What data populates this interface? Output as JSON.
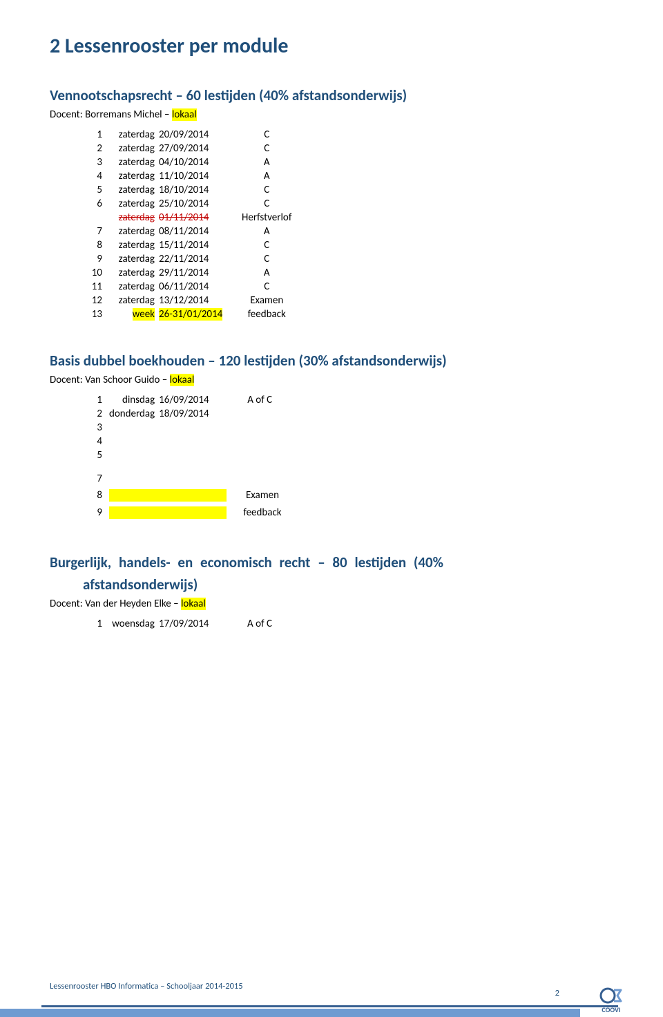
{
  "colors": {
    "heading": "#1f4e79",
    "highlight": "#ffff00",
    "strike": "#c00000",
    "barTop": "#365f91",
    "barBot": "#6f9bd1"
  },
  "sectionTitle": "2  Lessenrooster per module",
  "module1": {
    "title": "Vennootschapsrecht – 60 lestijden (40% afstandsonderwijs)",
    "docentPrefix": "Docent: Borremans Michel – ",
    "docentHighlight": "lokaal",
    "rows": [
      {
        "n": "1",
        "day": "zaterdag",
        "date": "20/09/2014",
        "v": "C"
      },
      {
        "n": "2",
        "day": "zaterdag",
        "date": "27/09/2014",
        "v": "C"
      },
      {
        "n": "3",
        "day": "zaterdag",
        "date": "04/10/2014",
        "v": "A"
      },
      {
        "n": "4",
        "day": "zaterdag",
        "date": "11/10/2014",
        "v": "A"
      },
      {
        "n": "5",
        "day": "zaterdag",
        "date": "18/10/2014",
        "v": "C"
      },
      {
        "n": "6",
        "day": "zaterdag",
        "date": "25/10/2014",
        "v": "C"
      },
      {
        "n": "",
        "day": "zaterdag",
        "date": "01/11/2014",
        "v": "Herfstverlof",
        "strike": true
      },
      {
        "n": "7",
        "day": "zaterdag",
        "date": "08/11/2014",
        "v": "A"
      },
      {
        "n": "8",
        "day": "zaterdag",
        "date": "15/11/2014",
        "v": "C"
      },
      {
        "n": "9",
        "day": "zaterdag",
        "date": "22/11/2014",
        "v": "C"
      },
      {
        "n": "10",
        "day": "zaterdag",
        "date": "29/11/2014",
        "v": "A"
      },
      {
        "n": "11",
        "day": "zaterdag",
        "date": "06/11/2014",
        "v": "C"
      },
      {
        "n": "12",
        "day": "zaterdag",
        "date": "13/12/2014",
        "v": "Examen"
      },
      {
        "n": "13",
        "day": "week",
        "date": "26-31/01/2014",
        "v": "feedback",
        "hl": true
      }
    ]
  },
  "module2": {
    "title": "Basis dubbel boekhouden – 120 lestijden (30% afstandsonderwijs)",
    "docentPrefix": "Docent: Van Schoor Guido  – ",
    "docentHighlight": "lokaal",
    "rows": [
      {
        "n": "1",
        "day": "dinsdag",
        "date": "16/09/2014",
        "v": "A of C"
      },
      {
        "n": "2",
        "day": "donderdag",
        "date": "18/09/2014",
        "v": ""
      },
      {
        "n": "3",
        "day": "",
        "date": "",
        "v": ""
      },
      {
        "n": "4",
        "day": "",
        "date": "",
        "v": ""
      },
      {
        "n": "5",
        "day": "",
        "date": "",
        "v": ""
      }
    ],
    "rows2": [
      {
        "n": "7",
        "day": "",
        "date": "",
        "v": ""
      }
    ],
    "rows3": [
      {
        "n": "8",
        "day": "",
        "date": "",
        "v": "Examen",
        "hlblank": true
      },
      {
        "n": "9",
        "day": "",
        "date": "",
        "v": "feedback",
        "hlblank": true
      }
    ]
  },
  "module3": {
    "title": "Burgerlijk, handels- en economisch recht – 80 lestijden (40% afstandsonderwijs)",
    "docentPrefix": "Docent: Van der Heyden Elke – ",
    "docentHighlight": "lokaal",
    "rows": [
      {
        "n": "1",
        "day": "woensdag",
        "date": "17/09/2014",
        "v": "A of C"
      }
    ]
  },
  "footer": {
    "text": "Lessenrooster HBO Informatica – Schooljaar 2014-2015",
    "page": "2",
    "logo": "COOVI"
  }
}
